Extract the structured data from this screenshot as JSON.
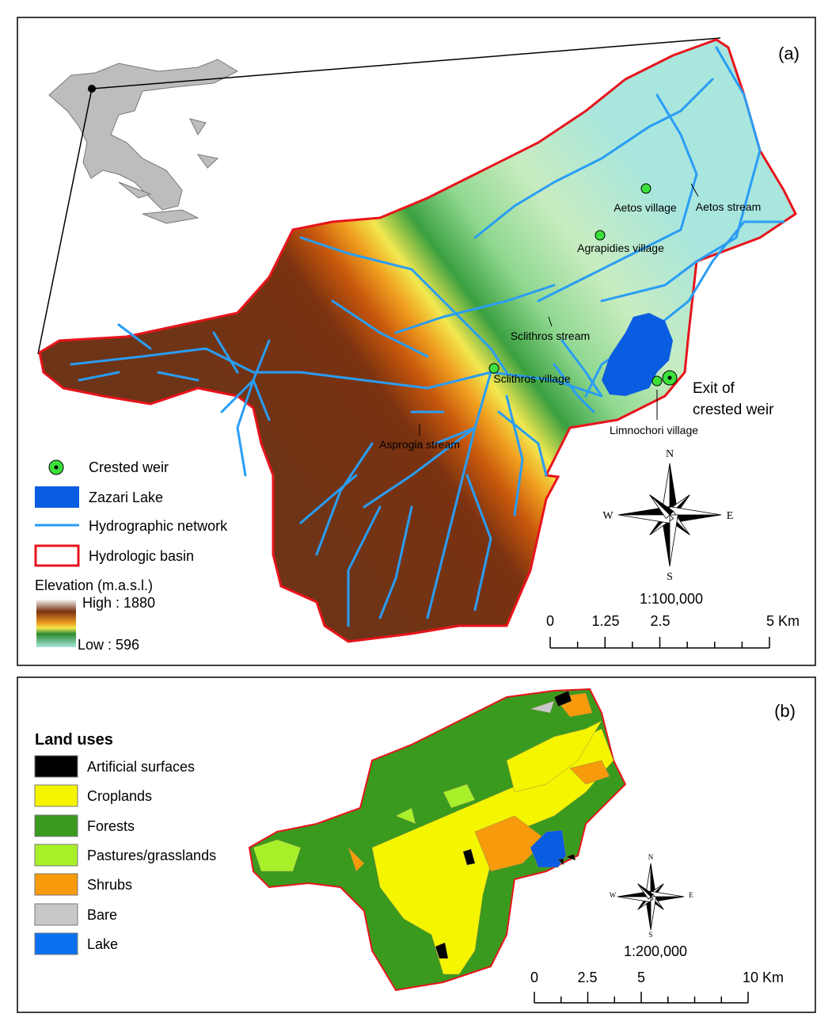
{
  "panel_a": {
    "label": "(a)",
    "annotations": {
      "aetos_village": "Aetos village",
      "aetos_stream": "Aetos stream",
      "agrapidies_village": "Agrapidies village",
      "sclithros_stream": "Sclithros stream",
      "sclithros_village": "Sclithros village",
      "asprogia_stream": "Asprogia stream",
      "limnochori_village": "Limnochori village",
      "exit": [
        "Exit of",
        "crested weir"
      ]
    },
    "legend": [
      "Crested weir",
      "Zazari Lake",
      "Hydrographic network",
      "Hydrologic basin"
    ],
    "elevation": {
      "title": "Elevation (m.a.s.l.)",
      "high": "High : 1880",
      "low": "Low : 596"
    },
    "compass": {
      "n": "N",
      "e": "E",
      "s": "S",
      "w": "W"
    },
    "scale": {
      "ratio": "1:100,000",
      "ticks": [
        "0",
        "1.25",
        "2.5",
        "5 Km"
      ]
    }
  },
  "panel_b": {
    "label": "(b)",
    "legend_title": "Land uses",
    "legend": [
      "Artificial surfaces",
      "Croplands",
      "Forests",
      "Pastures/grasslands",
      "Shrubs",
      "Bare",
      "Lake"
    ],
    "compass": {
      "n": "N",
      "e": "E",
      "s": "S",
      "w": "W"
    },
    "scale": {
      "ratio": "1:200,000",
      "ticks": [
        "0",
        "2.5",
        "5",
        "10 Km"
      ]
    }
  }
}
